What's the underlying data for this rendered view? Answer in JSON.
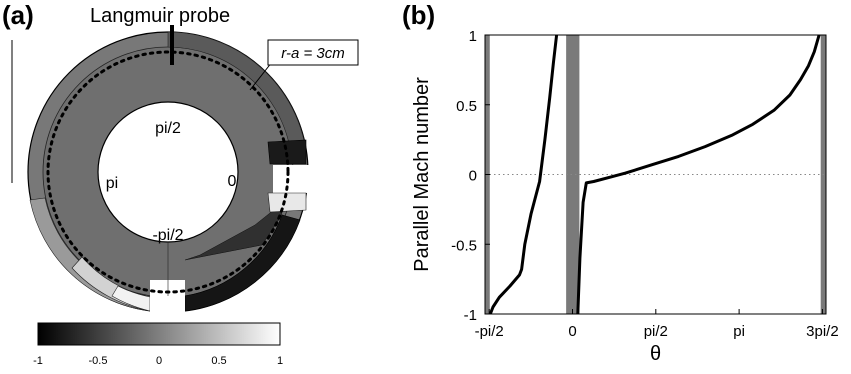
{
  "panel_a": {
    "label": "(a)",
    "probe_label": "Langmuir probe",
    "radius_label": "r-a = 3cm",
    "angle_labels": {
      "top": "pi/2",
      "left": "pi",
      "right": "0",
      "bottom": "-pi/2"
    },
    "colorbar": {
      "ticks": [
        "-1",
        "-0.5",
        "0",
        "0.5",
        "1"
      ],
      "min": -1,
      "max": 1
    },
    "colors": {
      "dark": "#151515",
      "mid": "#777777",
      "midlight": "#8c8c8c",
      "light": "#d0d0d0",
      "lightest": "#f0f0f0"
    }
  },
  "panel_b": {
    "label": "(b)",
    "chart_data": {
      "type": "line",
      "xlabel": "θ",
      "ylabel": "Parallel Mach number",
      "xticks": [
        "-pi/2",
        "0",
        "pi/2",
        "pi",
        "3pi/2"
      ],
      "xtick_values": [
        -1.5708,
        0,
        1.5708,
        3.1416,
        4.7124
      ],
      "xlim": [
        -1.65,
        4.78
      ],
      "yticks": [
        "-1",
        "-0.5",
        "0",
        "0.5",
        "1"
      ],
      "ytick_values": [
        -1,
        -0.5,
        0,
        0.5,
        1
      ],
      "ylim": [
        -1,
        1
      ],
      "reference_line": {
        "y": 0,
        "style": "dotted"
      },
      "shaded_bands": [
        {
          "x0": -1.65,
          "x1": -1.56
        },
        {
          "x0": -0.12,
          "x1": 0.13
        },
        {
          "x0": 4.68,
          "x1": 4.78
        }
      ],
      "series": [
        {
          "x": [
            -1.55,
            -1.5,
            -1.38,
            -1.18,
            -1.0,
            -0.96,
            -0.9,
            -0.78,
            -0.62,
            -0.52,
            -0.43,
            -0.36,
            -0.3
          ],
          "y": [
            -1.0,
            -0.95,
            -0.88,
            -0.8,
            -0.72,
            -0.68,
            -0.5,
            -0.28,
            -0.05,
            0.25,
            0.55,
            0.8,
            1.0
          ]
        },
        {
          "x": [
            0.1,
            0.14,
            0.2,
            0.26,
            0.4,
            0.7,
            1.0,
            1.5,
            2.0,
            2.5,
            3.0,
            3.4,
            3.8,
            4.1,
            4.3,
            4.45,
            4.56,
            4.65
          ],
          "y": [
            -1.0,
            -0.6,
            -0.2,
            -0.06,
            -0.05,
            -0.02,
            0.01,
            0.07,
            0.13,
            0.2,
            0.28,
            0.36,
            0.46,
            0.57,
            0.68,
            0.78,
            0.88,
            1.0
          ]
        }
      ],
      "band_color": "#7a7a7a",
      "line_color": "#000000"
    }
  }
}
